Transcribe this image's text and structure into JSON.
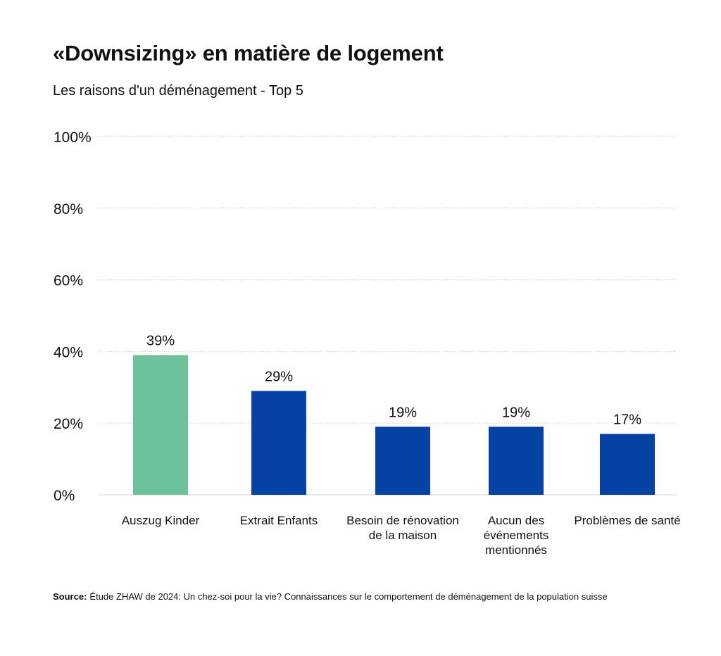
{
  "chart_data": {
    "type": "bar",
    "title": "«Downsizing» en matière de logement",
    "subtitle": "Les raisons d'un déménagement - Top 5",
    "categories": [
      "Auszug Kinder",
      "Extrait Enfants",
      "Besoin de rénovation de la maison",
      "Aucun des événements mentionnés",
      "Problèmes de santé"
    ],
    "values": [
      39,
      29,
      19,
      19,
      17
    ],
    "value_labels": [
      "39%",
      "29%",
      "19%",
      "19%",
      "17%"
    ],
    "bar_colors": [
      "#6cc39b",
      "#0641a4",
      "#0641a4",
      "#0641a4",
      "#0641a4"
    ],
    "ylim": [
      0,
      100
    ],
    "yticks": [
      0,
      20,
      40,
      60,
      80,
      100
    ],
    "ytick_labels": [
      "0%",
      "20%",
      "40%",
      "60%",
      "80%",
      "100%"
    ],
    "grid": true,
    "xlabel": "",
    "ylabel": ""
  },
  "source": {
    "label": "Source:",
    "text": "Étude ZHAW de 2024: Un chez-soi pour la vie? Connaissances sur le comportement de déménagement de la population suisse"
  }
}
